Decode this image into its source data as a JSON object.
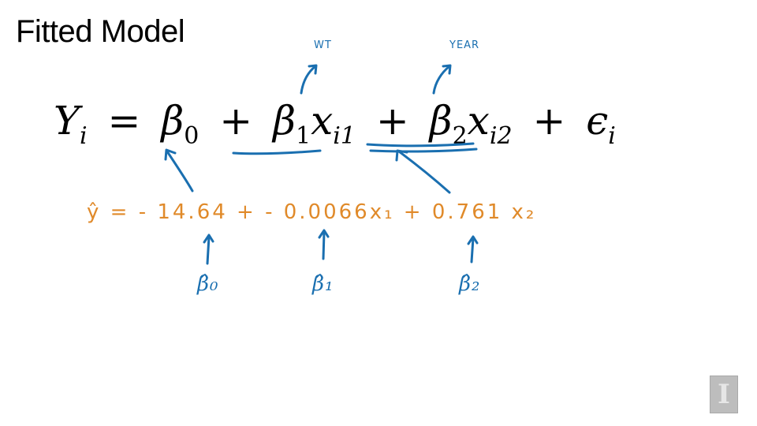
{
  "slide": {
    "title": "Fitted Model"
  },
  "equation": {
    "response": "Y",
    "response_index": "i",
    "equals": "=",
    "beta0": "β",
    "beta0_index": "0",
    "plus": "+",
    "beta1": "β",
    "beta1_index": "1",
    "x1": "x",
    "x1_index": "i1",
    "beta2": "β",
    "beta2_index": "2",
    "x2": "x",
    "x2_index": "i2",
    "epsilon": "ϵ",
    "epsilon_index": "i"
  },
  "annotations": {
    "x1_label": "WT",
    "x2_label": "YEAR",
    "fitted_equation": "ŷ = - 14.64 + - 0.0066x₁ + 0.761 x₂",
    "beta0_hat": "β̂₀",
    "beta1_hat": "β̂₁",
    "beta2_hat": "β̂₂"
  },
  "colors": {
    "annotation_blue": "#1a6fb0",
    "annotation_orange": "#e08a2a"
  },
  "logo": {
    "glyph": "I"
  }
}
